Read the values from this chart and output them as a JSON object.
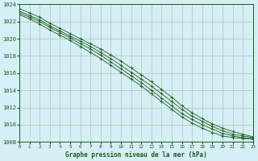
{
  "title": "Graphe pression niveau de la mer (hPa)",
  "background_color": "#d6eef5",
  "grid_color": "#b0c8b0",
  "line_color": "#1a5c1a",
  "marker_color": "#1a5c1a",
  "xlim": [
    0,
    23
  ],
  "ylim": [
    1008,
    1024
  ],
  "yticks": [
    1008,
    1010,
    1012,
    1014,
    1016,
    1018,
    1020,
    1022,
    1024
  ],
  "xticks": [
    0,
    1,
    2,
    3,
    4,
    5,
    6,
    7,
    8,
    9,
    10,
    11,
    12,
    13,
    14,
    15,
    16,
    17,
    18,
    19,
    20,
    21,
    22,
    23
  ],
  "series": [
    [
      1023.5,
      1023.0,
      1022.5,
      1021.8,
      1021.2,
      1020.6,
      1020.0,
      1019.4,
      1018.8,
      1018.1,
      1017.4,
      1016.6,
      1015.8,
      1015.0,
      1014.1,
      1013.2,
      1012.2,
      1011.4,
      1010.7,
      1010.1,
      1009.6,
      1009.2,
      1008.9,
      1008.6
    ],
    [
      1023.2,
      1022.7,
      1022.2,
      1021.5,
      1020.9,
      1020.3,
      1019.7,
      1019.1,
      1018.4,
      1017.7,
      1016.9,
      1016.1,
      1015.3,
      1014.5,
      1013.6,
      1012.7,
      1011.8,
      1011.0,
      1010.4,
      1009.8,
      1009.3,
      1008.9,
      1008.7,
      1008.5
    ],
    [
      1023.0,
      1022.5,
      1022.0,
      1021.3,
      1020.7,
      1020.1,
      1019.4,
      1018.8,
      1018.1,
      1017.3,
      1016.5,
      1015.7,
      1014.9,
      1014.0,
      1013.1,
      1012.2,
      1011.3,
      1010.6,
      1010.0,
      1009.5,
      1009.0,
      1008.7,
      1008.5,
      1008.4
    ],
    [
      1022.8,
      1022.3,
      1021.7,
      1021.0,
      1020.4,
      1019.8,
      1019.1,
      1018.4,
      1017.7,
      1016.9,
      1016.1,
      1015.3,
      1014.5,
      1013.6,
      1012.7,
      1011.8,
      1010.9,
      1010.2,
      1009.6,
      1009.1,
      1008.7,
      1008.5,
      1008.4,
      1008.3
    ]
  ]
}
